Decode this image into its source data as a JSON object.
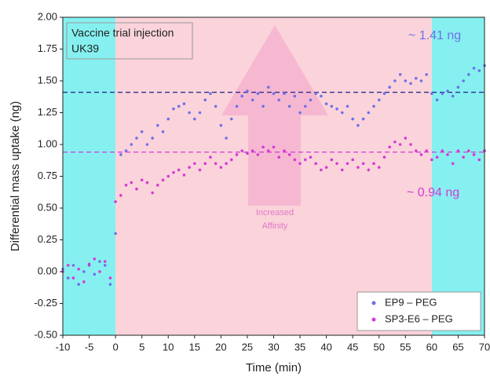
{
  "chart_data": {
    "type": "scatter",
    "xlabel": "Time (min)",
    "ylabel": "Differential mass uptake (ng)",
    "annotations": {
      "box": [
        "Vaccine trial injection",
        "UK39"
      ],
      "high": "~ 1.41 ng",
      "low": "~ 0.94 ng",
      "arrow": [
        "Increased",
        "Affinity"
      ]
    },
    "spans": [
      {
        "x": [
          -10,
          0
        ],
        "color": "#86f0f0"
      },
      {
        "x": [
          0,
          60
        ],
        "color": "#fbd3da"
      },
      {
        "x": [
          60,
          70
        ],
        "color": "#86f0f0"
      }
    ],
    "hlines": [
      {
        "value": 1.41,
        "color": "#2b2f8c"
      },
      {
        "value": 0.94,
        "color": "#d43ad6"
      }
    ],
    "x": [
      -10,
      -9,
      -8,
      -7,
      -6,
      -5,
      -4,
      -3,
      -2,
      -1,
      0,
      1,
      2,
      3,
      4,
      5,
      6,
      7,
      8,
      9,
      10,
      11,
      12,
      13,
      14,
      15,
      16,
      17,
      18,
      19,
      20,
      21,
      22,
      23,
      24,
      25,
      26,
      27,
      28,
      29,
      30,
      31,
      32,
      33,
      34,
      35,
      36,
      37,
      38,
      39,
      40,
      41,
      42,
      43,
      44,
      45,
      46,
      47,
      48,
      49,
      50,
      51,
      52,
      53,
      54,
      55,
      56,
      57,
      58,
      59,
      60,
      61,
      62,
      63,
      64,
      65,
      66,
      67,
      68,
      69,
      70
    ],
    "series": [
      {
        "name": "EP9 – PEG",
        "color": "#6c72e8",
        "values": [
          0.02,
          -0.05,
          0.05,
          -0.1,
          0,
          0.05,
          -0.02,
          0.08,
          0.05,
          -0.1,
          0.3,
          0.92,
          0.95,
          1.0,
          1.05,
          1.1,
          1.0,
          1.05,
          1.15,
          1.1,
          1.2,
          1.28,
          1.3,
          1.32,
          1.25,
          1.2,
          1.25,
          1.35,
          1.4,
          1.3,
          1.15,
          1.05,
          1.2,
          1.3,
          1.38,
          1.42,
          1.35,
          1.4,
          1.3,
          1.45,
          1.4,
          1.35,
          1.4,
          1.3,
          1.38,
          1.25,
          1.3,
          1.35,
          1.4,
          1.38,
          1.32,
          1.3,
          1.28,
          1.25,
          1.3,
          1.2,
          1.15,
          1.2,
          1.25,
          1.3,
          1.35,
          1.4,
          1.45,
          1.5,
          1.55,
          1.5,
          1.48,
          1.52,
          1.5,
          1.55,
          1.4,
          1.35,
          1.4,
          1.42,
          1.38,
          1.45,
          1.5,
          1.55,
          1.6,
          1.58,
          1.62
        ]
      },
      {
        "name": "SP3-E6 – PEG",
        "color": "#d43ad6",
        "values": [
          0.0,
          0.05,
          -0.05,
          0.02,
          -0.08,
          0.06,
          0.1,
          0.0,
          0.08,
          -0.05,
          0.55,
          0.6,
          0.68,
          0.7,
          0.65,
          0.72,
          0.7,
          0.62,
          0.68,
          0.72,
          0.75,
          0.78,
          0.8,
          0.76,
          0.82,
          0.85,
          0.8,
          0.85,
          0.9,
          0.85,
          0.82,
          0.85,
          0.88,
          0.92,
          0.95,
          0.93,
          0.95,
          0.92,
          0.98,
          0.95,
          0.98,
          0.9,
          0.95,
          0.92,
          0.88,
          0.85,
          0.88,
          0.9,
          0.85,
          0.8,
          0.82,
          0.88,
          0.85,
          0.8,
          0.85,
          0.88,
          0.82,
          0.85,
          0.8,
          0.85,
          0.82,
          0.9,
          0.98,
          1.02,
          1.0,
          1.05,
          1.0,
          0.95,
          0.92,
          0.95,
          0.88,
          0.9,
          0.95,
          0.92,
          0.85,
          0.95,
          0.9,
          0.95,
          0.92,
          0.88,
          0.95
        ]
      }
    ],
    "xlim": [
      -10,
      70
    ],
    "xticks": [
      -10,
      -5,
      0,
      5,
      10,
      15,
      20,
      25,
      30,
      35,
      40,
      45,
      50,
      55,
      60,
      65,
      70
    ],
    "ylim": [
      -0.5,
      2.0
    ],
    "yticks": [
      {
        "value": -0.5,
        "label": "-0.50"
      },
      {
        "value": -0.25,
        "label": "-0.25"
      },
      {
        "value": 0,
        "label": "0.00"
      },
      {
        "value": 0.25,
        "label": "0.25"
      },
      {
        "value": 0.5,
        "label": "0.50"
      },
      {
        "value": 0.75,
        "label": "0.75"
      },
      {
        "value": 1.0,
        "label": "1.00"
      },
      {
        "value": 1.25,
        "label": "1.25"
      },
      {
        "value": 1.5,
        "label": "1.50"
      },
      {
        "value": 1.75,
        "label": "1.75"
      },
      {
        "value": 2.0,
        "label": "2.00"
      }
    ],
    "legend": "lower right"
  }
}
